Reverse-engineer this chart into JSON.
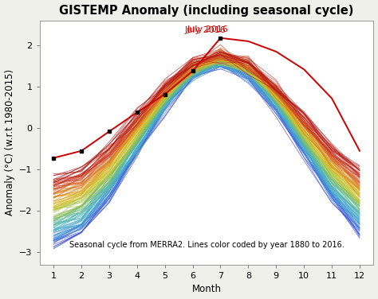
{
  "title": "GISTEMP Anomaly (including seasonal cycle)",
  "xlabel": "Month",
  "ylabel": "Anomaly (°C) (w.r.t 1980-2015)",
  "caption": "Seasonal cycle from MERRA2. Lines color coded by year 1880 to 2016.",
  "july2016_label": "July 2016",
  "year_start": 1880,
  "year_end": 2016,
  "ylim": [
    -3.3,
    2.6
  ],
  "xlim": [
    0.5,
    12.5
  ],
  "xticks": [
    1,
    2,
    3,
    4,
    5,
    6,
    7,
    8,
    9,
    10,
    11,
    12
  ],
  "yticks": [
    -3,
    -2,
    -1,
    0,
    1,
    2
  ],
  "background_color": "#f0f0eb",
  "plot_bg_color": "#ffffff",
  "july2016_color": "#cc0000",
  "july2016_data": [
    -0.72,
    -0.55,
    -0.08,
    0.38,
    0.82,
    1.38,
    2.18,
    2.1,
    1.85,
    1.42,
    0.72,
    -0.55
  ],
  "july2016_marker_months": [
    1,
    2,
    3,
    4,
    5,
    6,
    7
  ],
  "title_fontsize": 10.5,
  "label_fontsize": 8.5,
  "tick_fontsize": 8,
  "caption_fontsize": 7
}
